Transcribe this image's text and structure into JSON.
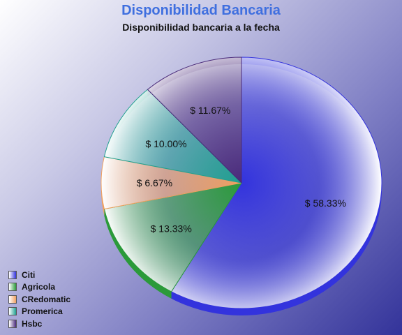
{
  "chart_data": {
    "type": "pie",
    "title": "Disponibilidad Bancaria",
    "subtitle": "Disponibilidad bancaria a la fecha",
    "currency_prefix": "$",
    "categories": [
      "Citi",
      "Agricola",
      "CRedomatic",
      "Promerica",
      "Hsbc"
    ],
    "values": [
      58.33,
      13.33,
      6.67,
      10.0,
      11.67
    ],
    "labels": [
      "58.33%",
      "13.33%",
      "6.67%",
      "10.00%",
      "11.67%"
    ],
    "colors": [
      "#3333dd",
      "#2b9a3a",
      "#f0a060",
      "#20a090",
      "#4a2a7a"
    ],
    "legend_position": "bottom-left",
    "style": "3D pie with gradient fill"
  }
}
